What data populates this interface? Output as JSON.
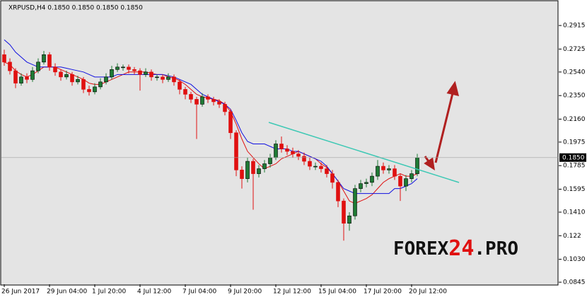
{
  "chart_data": {
    "type": "candlestick",
    "title": "XRPUSD,H4  0.1850 0.1850 0.1850 0.1850",
    "categories": [
      "26 Jun 2017",
      null,
      null,
      null,
      null,
      null,
      null,
      null,
      "29 Jun 04:00",
      null,
      null,
      null,
      null,
      null,
      null,
      null,
      "1 Jul 20:00",
      null,
      null,
      null,
      null,
      null,
      null,
      null,
      "4 Jul 12:00",
      null,
      null,
      null,
      null,
      null,
      null,
      null,
      "7 Jul 04:00",
      null,
      null,
      null,
      null,
      null,
      null,
      null,
      "9 Jul 20:00",
      null,
      null,
      null,
      null,
      null,
      null,
      null,
      "12 Jul 12:00",
      null,
      null,
      null,
      null,
      null,
      null,
      null,
      "15 Jul 04:00",
      null,
      null,
      null,
      null,
      null,
      null,
      null,
      "17 Jul 20:00",
      null,
      null,
      null,
      null,
      null,
      null,
      null,
      "20 Jul 12:00",
      null
    ],
    "open": [
      0.268,
      0.262,
      0.255,
      0.245,
      0.25,
      0.248,
      0.255,
      0.262,
      0.268,
      0.258,
      0.254,
      0.25,
      0.252,
      0.246,
      0.248,
      0.24,
      0.238,
      0.242,
      0.246,
      0.25,
      0.256,
      0.258,
      0.258,
      0.256,
      0.255,
      0.252,
      0.254,
      0.25,
      0.25,
      0.248,
      0.25,
      0.246,
      0.24,
      0.236,
      0.232,
      0.228,
      0.234,
      0.232,
      0.23,
      0.228,
      0.222,
      0.205,
      0.175,
      0.168,
      0.182,
      0.172,
      0.176,
      0.18,
      0.185,
      0.196,
      0.192,
      0.19,
      0.188,
      0.186,
      0.182,
      0.178,
      0.178,
      0.176,
      0.172,
      0.165,
      0.15,
      0.132,
      0.138,
      0.16,
      0.164,
      0.165,
      0.17,
      0.178,
      0.175,
      0.176,
      0.17,
      0.162,
      0.168,
      0.172
    ],
    "high": [
      0.272,
      0.265,
      0.257,
      0.253,
      0.253,
      0.258,
      0.265,
      0.271,
      0.27,
      0.261,
      0.256,
      0.255,
      0.254,
      0.251,
      0.25,
      0.243,
      0.245,
      0.249,
      0.253,
      0.259,
      0.261,
      0.26,
      0.26,
      0.258,
      0.257,
      0.257,
      0.256,
      0.252,
      0.252,
      0.253,
      0.252,
      0.248,
      0.242,
      0.238,
      0.234,
      0.237,
      0.236,
      0.234,
      0.232,
      0.23,
      0.224,
      0.207,
      0.178,
      0.185,
      0.184,
      0.179,
      0.183,
      0.188,
      0.199,
      0.202,
      0.195,
      0.193,
      0.191,
      0.189,
      0.185,
      0.181,
      0.181,
      0.179,
      0.175,
      0.167,
      0.152,
      0.141,
      0.163,
      0.167,
      0.168,
      0.173,
      0.183,
      0.181,
      0.179,
      0.179,
      0.172,
      0.171,
      0.175,
      0.188
    ],
    "low": [
      0.259,
      0.252,
      0.241,
      0.243,
      0.245,
      0.246,
      0.253,
      0.26,
      0.255,
      0.251,
      0.247,
      0.248,
      0.243,
      0.244,
      0.237,
      0.235,
      0.236,
      0.24,
      0.244,
      0.248,
      0.254,
      0.255,
      0.253,
      0.252,
      0.239,
      0.25,
      0.247,
      0.247,
      0.245,
      0.246,
      0.243,
      0.236,
      0.232,
      0.229,
      0.2,
      0.226,
      0.229,
      0.227,
      0.225,
      0.219,
      0.2,
      0.17,
      0.16,
      0.165,
      0.143,
      0.169,
      0.173,
      0.177,
      0.183,
      0.189,
      0.187,
      0.185,
      0.183,
      0.179,
      0.175,
      0.175,
      0.173,
      0.169,
      0.16,
      0.145,
      0.118,
      0.126,
      0.135,
      0.157,
      0.161,
      0.162,
      0.167,
      0.172,
      0.172,
      0.167,
      0.15,
      0.158,
      0.165,
      0.17
    ],
    "close": [
      0.262,
      0.255,
      0.245,
      0.25,
      0.248,
      0.255,
      0.262,
      0.268,
      0.258,
      0.254,
      0.25,
      0.252,
      0.246,
      0.248,
      0.24,
      0.238,
      0.242,
      0.246,
      0.25,
      0.256,
      0.258,
      0.258,
      0.256,
      0.255,
      0.252,
      0.254,
      0.25,
      0.25,
      0.248,
      0.25,
      0.246,
      0.24,
      0.236,
      0.232,
      0.228,
      0.234,
      0.232,
      0.23,
      0.228,
      0.222,
      0.205,
      0.175,
      0.168,
      0.182,
      0.172,
      0.176,
      0.18,
      0.185,
      0.196,
      0.192,
      0.19,
      0.188,
      0.186,
      0.182,
      0.178,
      0.178,
      0.176,
      0.172,
      0.165,
      0.15,
      0.132,
      0.138,
      0.16,
      0.164,
      0.165,
      0.17,
      0.178,
      0.175,
      0.176,
      0.17,
      0.162,
      0.168,
      0.172,
      0.185
    ],
    "up_color": "#1e7a34",
    "down_color": "#e01010",
    "series": [
      {
        "color": "#e01010",
        "values": [
          0.262,
          0.26,
          0.255,
          0.252,
          0.25,
          0.252,
          0.255,
          0.258,
          0.258,
          0.258,
          0.256,
          0.254,
          0.252,
          0.25,
          0.248,
          0.245,
          0.244,
          0.244,
          0.246,
          0.248,
          0.25,
          0.252,
          0.254,
          0.254,
          0.254,
          0.254,
          0.253,
          0.252,
          0.252,
          0.25,
          0.249,
          0.247,
          0.244,
          0.24,
          0.236,
          0.234,
          0.233,
          0.232,
          0.231,
          0.228,
          0.222,
          0.212,
          0.2,
          0.19,
          0.185,
          0.18,
          0.176,
          0.178,
          0.18,
          0.184,
          0.186,
          0.188,
          0.19,
          0.188,
          0.186,
          0.184,
          0.18,
          0.177,
          0.172,
          0.166,
          0.158,
          0.15,
          0.148,
          0.15,
          0.152,
          0.155,
          0.16,
          0.165,
          0.168,
          0.17,
          0.172,
          0.17,
          0.17,
          0.172
        ]
      },
      {
        "color": "#1010e0",
        "values": [
          0.28,
          0.276,
          0.27,
          0.266,
          0.262,
          0.26,
          0.258,
          0.258,
          0.258,
          0.258,
          0.258,
          0.257,
          0.256,
          0.255,
          0.254,
          0.252,
          0.25,
          0.25,
          0.25,
          0.25,
          0.252,
          0.252,
          0.252,
          0.252,
          0.252,
          0.252,
          0.252,
          0.252,
          0.252,
          0.251,
          0.25,
          0.248,
          0.246,
          0.244,
          0.24,
          0.236,
          0.234,
          0.232,
          0.23,
          0.228,
          0.224,
          0.215,
          0.205,
          0.198,
          0.196,
          0.196,
          0.196,
          0.194,
          0.192,
          0.192,
          0.192,
          0.19,
          0.19,
          0.188,
          0.186,
          0.184,
          0.182,
          0.178,
          0.172,
          0.166,
          0.16,
          0.158,
          0.156,
          0.156,
          0.156,
          0.156,
          0.156,
          0.156,
          0.156,
          0.16,
          0.16,
          0.162,
          0.164,
          0.168
        ]
      }
    ],
    "current_price": {
      "value": 0.185,
      "label": "0.1850"
    },
    "ylim": [
      0.0828,
      0.3075
    ],
    "yticks": [
      0.2915,
      0.2725,
      {
        "value": 0.254,
        "label": "0.2540"
      },
      {
        "value": 0.235,
        "label": "0.2350"
      },
      {
        "value": 0.216,
        "label": "0.2160"
      },
      0.1975,
      0.1785,
      0.1595,
      {
        "value": 0.141,
        "label": "0.1410"
      },
      0.122,
      {
        "value": 0.103,
        "label": "0.1030"
      },
      0.0845
    ],
    "grid": false,
    "watermark": [
      "FOREX",
      "24",
      ".PRO"
    ]
  }
}
